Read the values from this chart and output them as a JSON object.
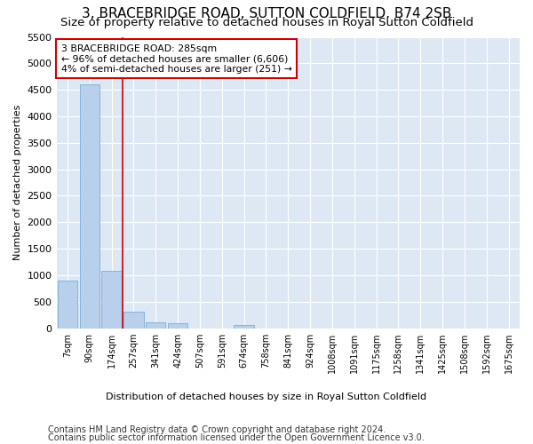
{
  "title": "3, BRACEBRIDGE ROAD, SUTTON COLDFIELD, B74 2SB",
  "subtitle": "Size of property relative to detached houses in Royal Sutton Coldfield",
  "xlabel": "Distribution of detached houses by size in Royal Sutton Coldfield",
  "ylabel": "Number of detached properties",
  "footer_line1": "Contains HM Land Registry data © Crown copyright and database right 2024.",
  "footer_line2": "Contains public sector information licensed under the Open Government Licence v3.0.",
  "bar_labels": [
    "7sqm",
    "90sqm",
    "174sqm",
    "257sqm",
    "341sqm",
    "424sqm",
    "507sqm",
    "591sqm",
    "674sqm",
    "758sqm",
    "841sqm",
    "924sqm",
    "1008sqm",
    "1091sqm",
    "1175sqm",
    "1258sqm",
    "1341sqm",
    "1425sqm",
    "1508sqm",
    "1592sqm",
    "1675sqm"
  ],
  "bar_values": [
    900,
    4600,
    1080,
    310,
    110,
    100,
    0,
    0,
    60,
    0,
    0,
    0,
    0,
    0,
    0,
    0,
    0,
    0,
    0,
    0,
    0
  ],
  "bar_color": "#b8d0eb",
  "bar_edge_color": "#7aaed6",
  "property_line_x": 2.5,
  "property_line_label": "3 BRACEBRIDGE ROAD: 285sqm",
  "annotation_line1": "← 96% of detached houses are smaller (6,606)",
  "annotation_line2": "4% of semi-detached houses are larger (251) →",
  "annotation_box_facecolor": "#ffffff",
  "annotation_box_edgecolor": "#cc0000",
  "property_line_color": "#cc0000",
  "ylim_max": 5500,
  "yticks": [
    0,
    500,
    1000,
    1500,
    2000,
    2500,
    3000,
    3500,
    4000,
    4500,
    5000,
    5500
  ],
  "plot_bg": "#dde8f4",
  "grid_color": "#ffffff",
  "title_fontsize": 11,
  "subtitle_fontsize": 9.5,
  "axis_fontsize": 8,
  "tick_fontsize": 8,
  "footer_fontsize": 7
}
